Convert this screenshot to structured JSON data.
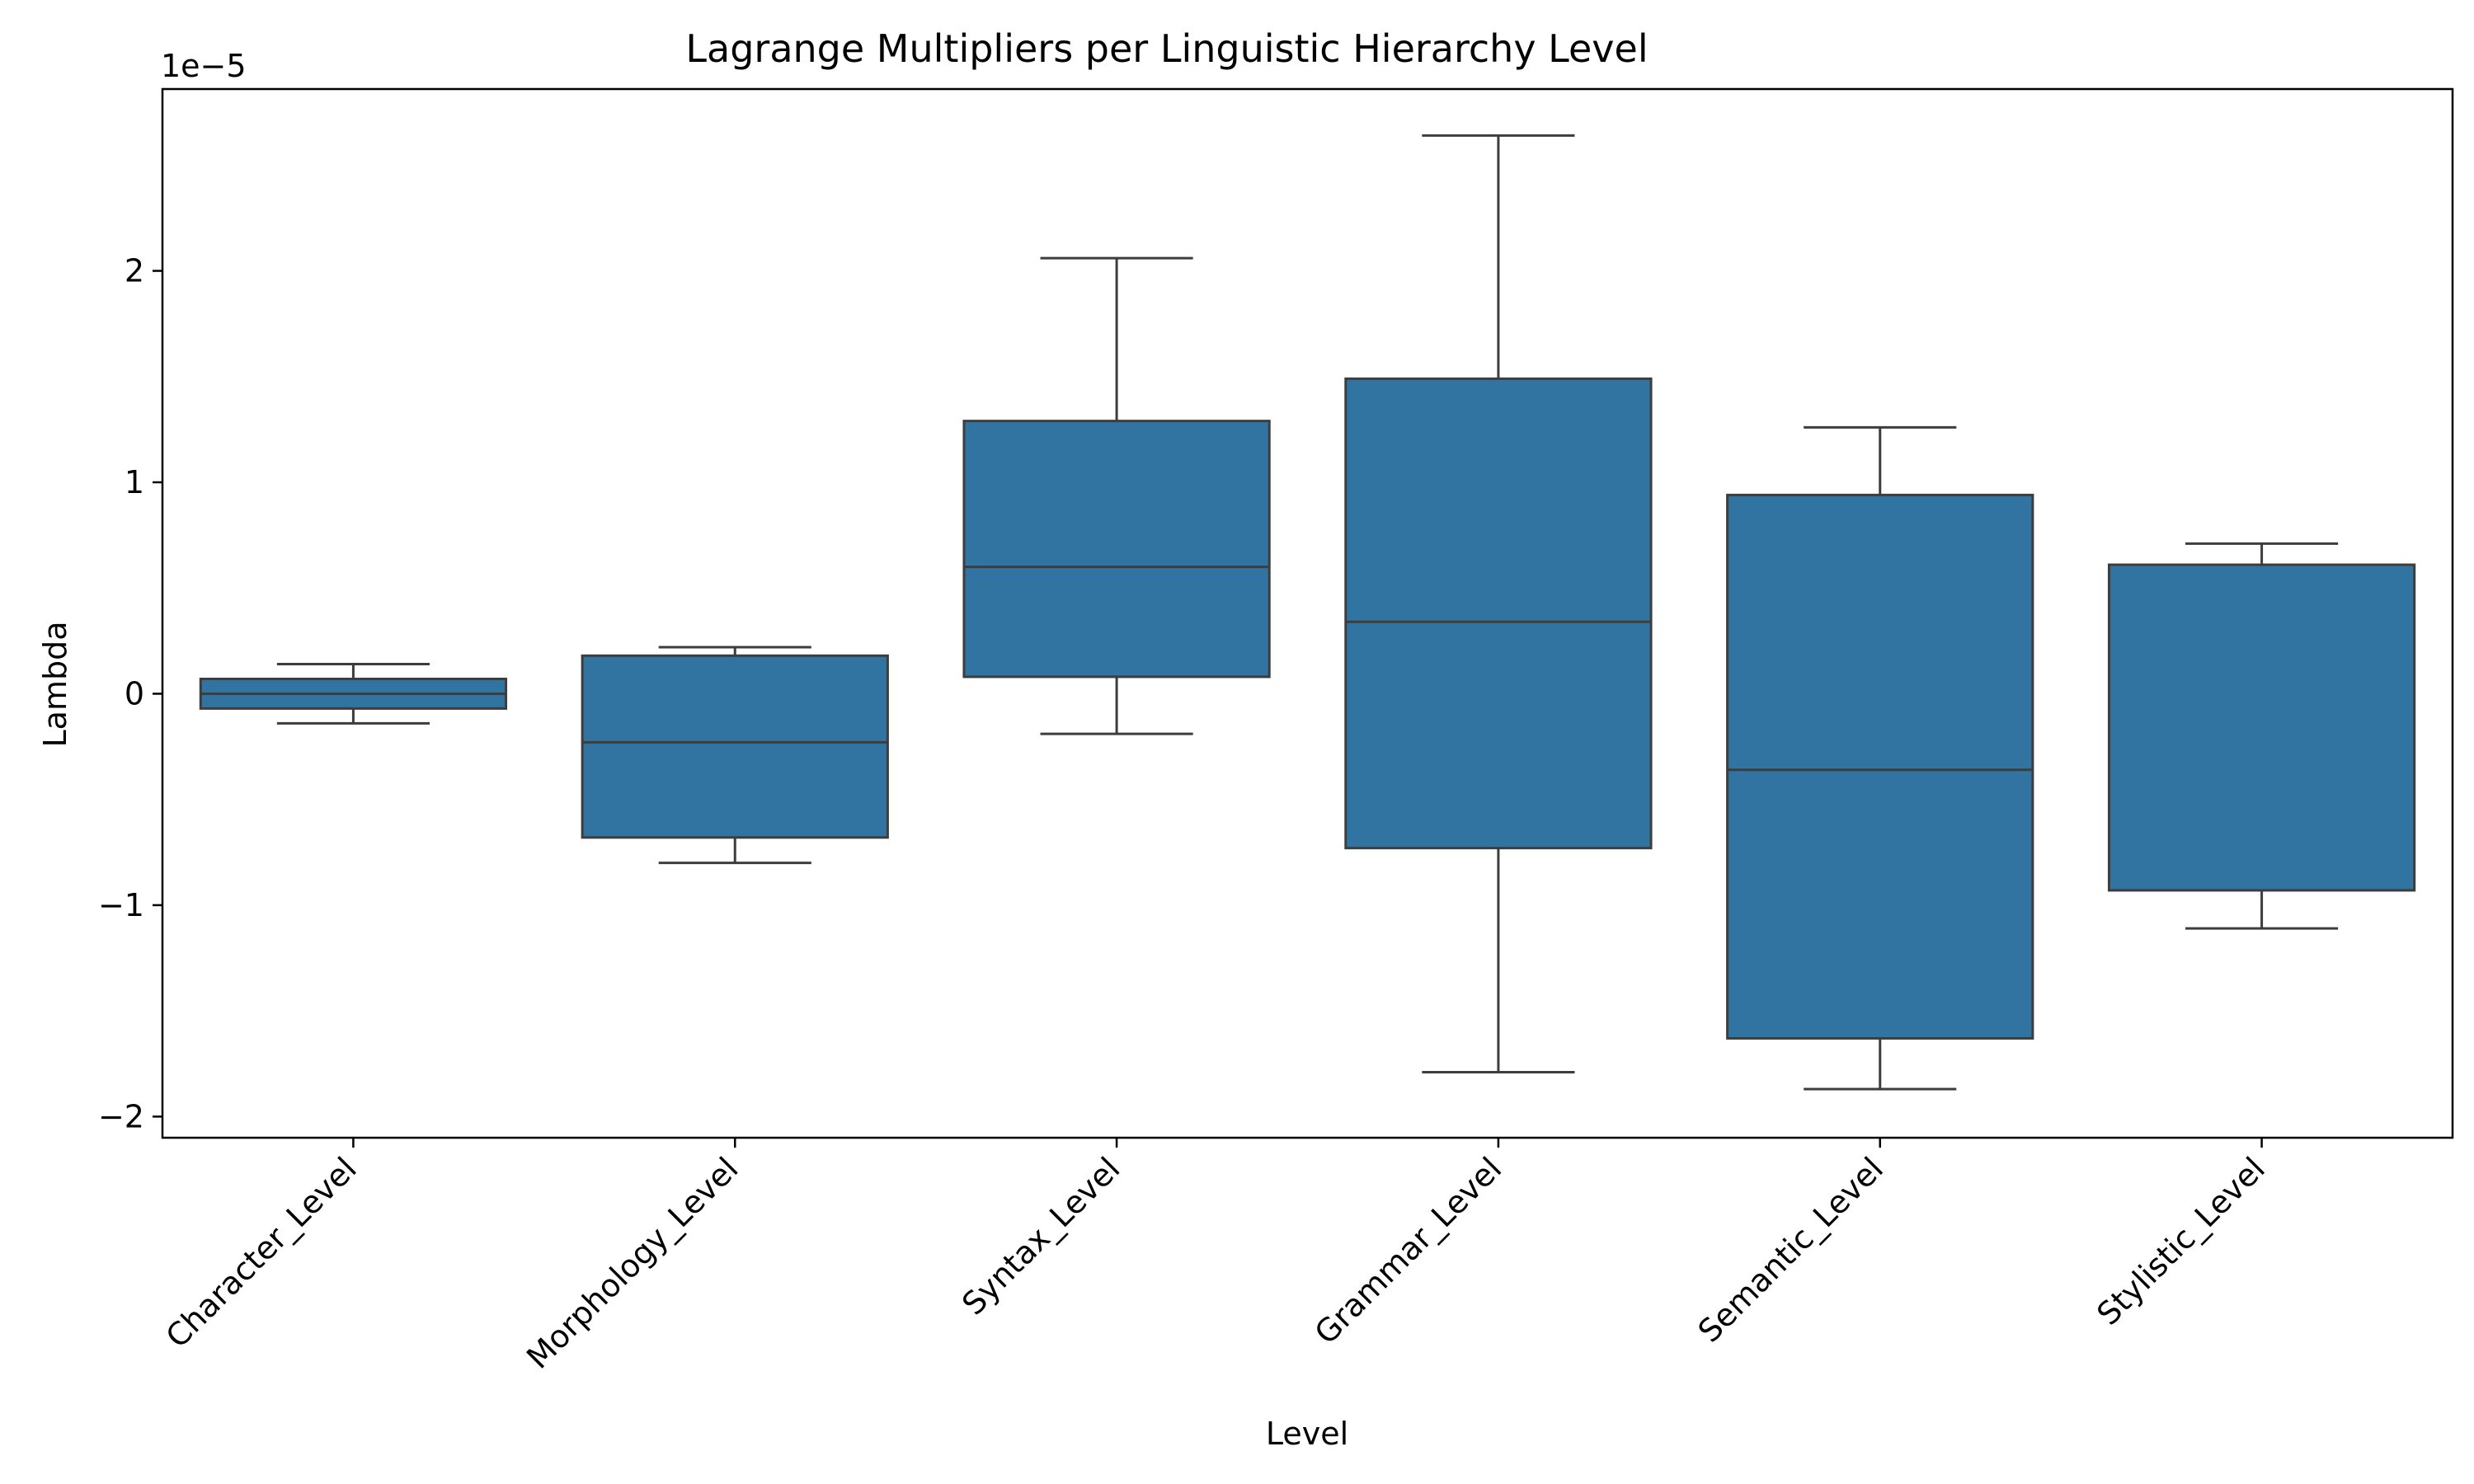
{
  "chart_data": {
    "type": "box",
    "title": "Lagrange Multipliers per Linguistic Hierarchy Level",
    "xlabel": "Level",
    "ylabel": "Lambda",
    "y_offset_text": "1e−5",
    "y_scale": 1e-05,
    "ylim": [
      -2.1,
      2.86
    ],
    "yticks": [
      -2,
      -1,
      0,
      1,
      2
    ],
    "ytick_labels": [
      "−2",
      "−1",
      "0",
      "1",
      "2"
    ],
    "grid": false,
    "box_color": "#3274a1",
    "line_color": "#3d3d3d",
    "categories": [
      "Character_Level",
      "Morphology_Level",
      "Syntax_Level",
      "Grammar_Level",
      "Semantic_Level",
      "Stylistic_Level"
    ],
    "boxes": [
      {
        "whisker_low": -0.14,
        "q1": -0.07,
        "median": 0.0,
        "q3": 0.07,
        "whisker_high": 0.14
      },
      {
        "whisker_low": -0.8,
        "q1": -0.68,
        "median": -0.23,
        "q3": 0.18,
        "whisker_high": 0.22
      },
      {
        "whisker_low": -0.19,
        "q1": 0.08,
        "median": 0.6,
        "q3": 1.29,
        "whisker_high": 2.06
      },
      {
        "whisker_low": -1.79,
        "q1": -0.73,
        "median": 0.34,
        "q3": 1.49,
        "whisker_high": 2.64
      },
      {
        "whisker_low": -1.87,
        "q1": -1.63,
        "median": -0.36,
        "q3": 0.94,
        "whisker_high": 1.26
      },
      {
        "whisker_low": -1.11,
        "q1": -0.93,
        "median": 0.61,
        "q3": 0.61,
        "whisker_high": 0.71
      }
    ]
  }
}
